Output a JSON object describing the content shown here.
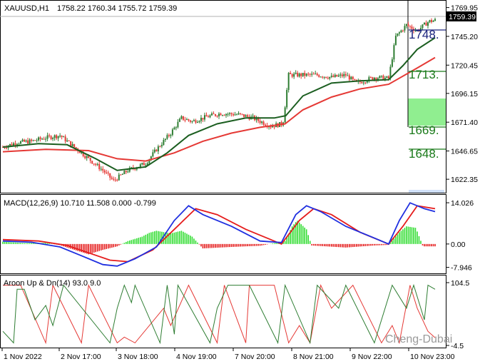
{
  "header": {
    "symbol": "XAUUSD,H1",
    "ohlc": "1758.22 1760.34 1755.72 1759.39"
  },
  "price_axis": {
    "ticks": [
      "1769.95",
      "1745.20",
      "1720.45",
      "1696.15",
      "1671.40",
      "1646.65",
      "1622.35"
    ],
    "current_price": "1759.39"
  },
  "price_levels": [
    {
      "label": "1748.",
      "color": "#1a237e"
    },
    {
      "label": "1713.",
      "color": "#1a7a1a"
    },
    {
      "label": "1669.",
      "color": "#1a7a1a"
    },
    {
      "label": "1648.",
      "color": "#1a7a1a"
    }
  ],
  "macd": {
    "title": "MACD(12,26,9) 10.710 11.508 0.000 -0.799",
    "ticks": [
      "14.026",
      "0.00",
      "-7.946"
    ]
  },
  "aroon": {
    "title": "Aroon Up & Dn(14) 93.0 9.0",
    "ticks": [
      "104.5",
      "-4.5"
    ]
  },
  "time_axis": [
    "1 Nov 2022",
    "2 Nov 17:00",
    "3 Nov 18:00",
    "4 Nov 19:00",
    "7 Nov 20:00",
    "8 Nov 21:00",
    "9 Nov 22:00",
    "10 Nov 23:00"
  ],
  "watermark": "Cheng-Dubai",
  "colors": {
    "bull": "#2e7d32",
    "bear": "#e53935",
    "ma_fast": "#1b5e20",
    "ma_slow": "#e53935",
    "macd_line": "#1f2fe0",
    "signal_line": "#e51c1c",
    "hist_pos": "#33dd33",
    "hist_neg": "#e51c1c",
    "aroon_up": "#2e7d32",
    "aroon_dn": "#e53935",
    "zone": "#90ee90"
  },
  "chart_data": [
    {
      "type": "candlestick",
      "title": "XAUUSD,H1",
      "ylim": [
        1612,
        1774
      ],
      "ticks": [
        1769.95,
        1745.2,
        1720.45,
        1696.15,
        1671.4,
        1646.65,
        1622.35
      ],
      "anchors": [
        [
          0,
          1650
        ],
        [
          20,
          1654
        ],
        [
          40,
          1655
        ],
        [
          60,
          1658
        ],
        [
          80,
          1660
        ],
        [
          100,
          1650
        ],
        [
          120,
          1640
        ],
        [
          140,
          1630
        ],
        [
          155,
          1621
        ],
        [
          175,
          1630
        ],
        [
          200,
          1636
        ],
        [
          215,
          1648
        ],
        [
          235,
          1662
        ],
        [
          250,
          1675
        ],
        [
          265,
          1672
        ],
        [
          285,
          1676
        ],
        [
          305,
          1679
        ],
        [
          330,
          1678
        ],
        [
          350,
          1675
        ],
        [
          375,
          1668
        ],
        [
          392,
          1670
        ],
        [
          400,
          1712
        ],
        [
          420,
          1712
        ],
        [
          440,
          1712
        ],
        [
          460,
          1710
        ],
        [
          480,
          1712
        ],
        [
          495,
          1705
        ],
        [
          520,
          1710
        ],
        [
          540,
          1709
        ],
        [
          550,
          1745
        ],
        [
          565,
          1755
        ],
        [
          580,
          1750
        ],
        [
          596,
          1758
        ],
        [
          605,
          1759
        ]
      ],
      "ma_fast": [
        [
          0,
          1650
        ],
        [
          50,
          1653
        ],
        [
          90,
          1652
        ],
        [
          130,
          1640
        ],
        [
          160,
          1630
        ],
        [
          200,
          1633
        ],
        [
          230,
          1645
        ],
        [
          260,
          1660
        ],
        [
          300,
          1670
        ],
        [
          340,
          1675
        ],
        [
          380,
          1675
        ],
        [
          396,
          1677
        ],
        [
          420,
          1694
        ],
        [
          460,
          1705
        ],
        [
          500,
          1707
        ],
        [
          540,
          1708
        ],
        [
          560,
          1720
        ],
        [
          580,
          1734
        ],
        [
          605,
          1744
        ]
      ],
      "ma_slow": [
        [
          0,
          1646
        ],
        [
          60,
          1648
        ],
        [
          120,
          1647
        ],
        [
          160,
          1640
        ],
        [
          200,
          1638
        ],
        [
          240,
          1645
        ],
        [
          280,
          1655
        ],
        [
          320,
          1662
        ],
        [
          360,
          1667
        ],
        [
          395,
          1670
        ],
        [
          420,
          1682
        ],
        [
          460,
          1693
        ],
        [
          500,
          1700
        ],
        [
          540,
          1704
        ],
        [
          580,
          1718
        ],
        [
          605,
          1727
        ]
      ]
    },
    {
      "type": "line",
      "title": "MACD(12,26,9) 10.710 11.508 0.000 -0.799",
      "ylim": [
        -9.5,
        15.5
      ],
      "macd": [
        [
          0,
          1
        ],
        [
          40,
          0.6
        ],
        [
          80,
          -1
        ],
        [
          110,
          -4
        ],
        [
          140,
          -7
        ],
        [
          160,
          -7.5
        ],
        [
          185,
          -5
        ],
        [
          215,
          -1
        ],
        [
          240,
          8
        ],
        [
          260,
          13
        ],
        [
          280,
          10
        ],
        [
          320,
          6
        ],
        [
          360,
          1
        ],
        [
          390,
          0.5
        ],
        [
          410,
          10
        ],
        [
          425,
          13
        ],
        [
          445,
          11
        ],
        [
          480,
          6
        ],
        [
          520,
          2
        ],
        [
          540,
          0
        ],
        [
          555,
          8
        ],
        [
          570,
          14
        ],
        [
          590,
          12
        ],
        [
          605,
          11
        ]
      ],
      "signal": [
        [
          0,
          1.5
        ],
        [
          50,
          1
        ],
        [
          90,
          -0.5
        ],
        [
          120,
          -3
        ],
        [
          150,
          -5.5
        ],
        [
          175,
          -6
        ],
        [
          210,
          -2
        ],
        [
          240,
          5
        ],
        [
          270,
          12
        ],
        [
          300,
          10
        ],
        [
          340,
          5
        ],
        [
          390,
          0
        ],
        [
          415,
          8
        ],
        [
          435,
          12
        ],
        [
          460,
          10
        ],
        [
          500,
          4
        ],
        [
          540,
          0
        ],
        [
          560,
          6
        ],
        [
          580,
          13
        ],
        [
          605,
          12
        ]
      ],
      "histogram": [
        [
          0,
          0.8
        ],
        [
          30,
          0.3
        ],
        [
          60,
          0.4
        ],
        [
          80,
          -0.4
        ],
        [
          100,
          -2
        ],
        [
          120,
          -3.5
        ],
        [
          140,
          -2
        ],
        [
          160,
          -0.8
        ],
        [
          175,
          1
        ],
        [
          195,
          2.5
        ],
        [
          205,
          3.8
        ],
        [
          215,
          4.5
        ],
        [
          235,
          3.6
        ],
        [
          250,
          4.5
        ],
        [
          265,
          2.5
        ],
        [
          280,
          -1.5
        ],
        [
          320,
          -1
        ],
        [
          360,
          -0.6
        ],
        [
          395,
          1
        ],
        [
          405,
          6
        ],
        [
          412,
          8
        ],
        [
          425,
          5
        ],
        [
          432,
          -0.5
        ],
        [
          480,
          -1.2
        ],
        [
          520,
          -0.5
        ],
        [
          540,
          -0.3
        ],
        [
          555,
          4
        ],
        [
          565,
          6
        ],
        [
          578,
          5.5
        ],
        [
          588,
          -0.8
        ],
        [
          605,
          -0.8
        ]
      ]
    },
    {
      "type": "line",
      "title": "Aroon Up & Dn(14) 93.0 9.0",
      "ylim": [
        -4.5,
        104.5
      ],
      "aroon_up": [
        [
          0,
          20
        ],
        [
          15,
          0
        ],
        [
          20,
          93
        ],
        [
          30,
          93
        ],
        [
          45,
          40
        ],
        [
          60,
          65
        ],
        [
          70,
          30
        ],
        [
          85,
          100
        ],
        [
          150,
          0
        ],
        [
          160,
          60
        ],
        [
          170,
          100
        ],
        [
          180,
          70
        ],
        [
          185,
          100
        ],
        [
          220,
          0
        ],
        [
          230,
          100
        ],
        [
          240,
          15
        ],
        [
          245,
          100
        ],
        [
          290,
          0
        ],
        [
          300,
          60
        ],
        [
          315,
          100
        ],
        [
          345,
          100
        ],
        [
          385,
          0
        ],
        [
          395,
          100
        ],
        [
          430,
          0
        ],
        [
          440,
          100
        ],
        [
          470,
          60
        ],
        [
          480,
          100
        ],
        [
          520,
          0
        ],
        [
          545,
          100
        ],
        [
          565,
          60
        ],
        [
          575,
          100
        ],
        [
          590,
          40
        ],
        [
          595,
          100
        ],
        [
          605,
          93
        ]
      ],
      "aroon_dn": [
        [
          0,
          100
        ],
        [
          25,
          100
        ],
        [
          60,
          0
        ],
        [
          70,
          100
        ],
        [
          110,
          0
        ],
        [
          120,
          100
        ],
        [
          160,
          0
        ],
        [
          170,
          10
        ],
        [
          185,
          0
        ],
        [
          225,
          60
        ],
        [
          235,
          30
        ],
        [
          260,
          100
        ],
        [
          300,
          0
        ],
        [
          310,
          100
        ],
        [
          340,
          0
        ],
        [
          345,
          100
        ],
        [
          380,
          100
        ],
        [
          400,
          0
        ],
        [
          415,
          30
        ],
        [
          430,
          0
        ],
        [
          445,
          100
        ],
        [
          460,
          60
        ],
        [
          490,
          100
        ],
        [
          530,
          0
        ],
        [
          545,
          30
        ],
        [
          555,
          0
        ],
        [
          570,
          100
        ],
        [
          580,
          60
        ],
        [
          595,
          20
        ],
        [
          605,
          9
        ]
      ]
    }
  ]
}
